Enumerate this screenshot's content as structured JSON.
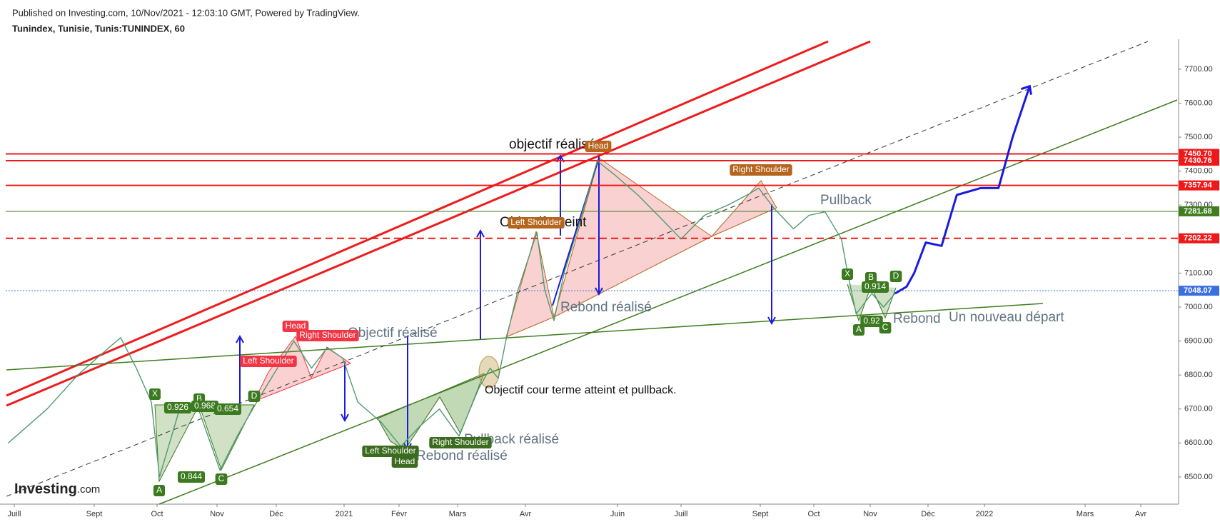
{
  "header": {
    "published": "Published on Investing.com, 10/Nov/2021 - 12:03:10 GMT, Powered by TradingView.",
    "symbol": "Tunindex, Tunisie, Tunis:TUNINDEX, 60"
  },
  "logo": {
    "brand": "Investing",
    "suffix": ".com"
  },
  "chart_data": {
    "type": "line",
    "xlim": [
      -0.15,
      21.5
    ],
    "xticks": [
      {
        "value": 0,
        "label": "Juill"
      },
      {
        "value": 2,
        "label": "Sept"
      },
      {
        "value": 3,
        "label": "Oct"
      },
      {
        "value": 4,
        "label": "Nov"
      },
      {
        "value": 5,
        "label": "Déc"
      },
      {
        "value": 6,
        "label": "2021"
      },
      {
        "value": 7,
        "label": "Févr"
      },
      {
        "value": 8,
        "label": "Mars"
      },
      {
        "value": 9,
        "label": "Avr"
      },
      {
        "value": 11,
        "label": "Juin"
      },
      {
        "value": 12,
        "label": "Juill"
      },
      {
        "value": 14,
        "label": "Sept"
      },
      {
        "value": 15,
        "label": "Oct"
      },
      {
        "value": 16,
        "label": "Nov"
      },
      {
        "value": 17,
        "label": "Déc"
      },
      {
        "value": 18,
        "label": "2022"
      },
      {
        "value": 20,
        "label": "Mars"
      },
      {
        "value": 21,
        "label": "Avr"
      }
    ],
    "ylim": [
      6420,
      7788
    ],
    "yticks": [
      {
        "value": 6500,
        "label": "6500.00"
      },
      {
        "value": 6600,
        "label": "6600.00"
      },
      {
        "value": 6700,
        "label": "6700.00"
      },
      {
        "value": 6800,
        "label": "6800.00"
      },
      {
        "value": 6900,
        "label": "6900.00"
      },
      {
        "value": 7000,
        "label": "7000.00"
      },
      {
        "value": 7100,
        "label": "7100.00"
      },
      {
        "value": 7200,
        "label": "7200.00"
      },
      {
        "value": 7300,
        "label": "7300.00"
      },
      {
        "value": 7400,
        "label": "7400.00"
      },
      {
        "value": 7500,
        "label": "7500.00"
      },
      {
        "value": 7600,
        "label": "7600.00"
      },
      {
        "value": 7700,
        "label": "7700.00"
      }
    ],
    "series": [
      {
        "color": "#4f9a72",
        "x": [
          -0.15,
          0.82,
          1.59,
          2.23,
          2.42,
          2.67,
          2.91,
          3.04,
          3.36,
          3.69,
          4.05,
          4.34,
          4.67,
          5.26,
          5.52,
          5.75,
          5.98,
          6.25,
          6.68,
          7.03,
          7.36,
          7.69,
          8.02,
          8.31,
          8.48,
          8.6,
          8.71,
          8.89,
          9.25,
          9.42,
          9.62,
          9.84,
          10.18,
          10.56,
          10.93,
          11.32,
          11.69,
          12.0,
          12.59,
          13.18,
          13.67,
          13.96,
          14.26,
          14.62,
          14.91,
          15.2,
          15.49,
          15.6,
          15.75,
          16.03,
          16.23,
          16.43
        ],
        "values": [
          6600,
          6700,
          6800,
          6880,
          6910,
          6820,
          6720,
          6500,
          6690,
          6700,
          6520,
          6620,
          6720,
          6900,
          6820,
          6880,
          6850,
          6720,
          6660,
          6590,
          6650,
          6700,
          6620,
          6760,
          6820,
          6790,
          6900,
          7050,
          7220,
          7050,
          6960,
          7100,
          7250,
          7430,
          7390,
          7330,
          7260,
          7200,
          7270,
          7300,
          7330,
          7350,
          7290,
          7230,
          7270,
          7280,
          7200,
          7100,
          6980,
          7040,
          7000,
          7040
        ]
      },
      {
        "color": "#1a1ae0",
        "x": [
          16.43,
          16.63,
          16.76,
          16.96,
          17.24,
          17.51,
          17.93,
          18.28,
          18.56,
          18.9
        ],
        "values": [
          7040,
          7060,
          7100,
          7190,
          7180,
          7330,
          7350,
          7350,
          7500,
          7650
        ]
      }
    ],
    "levels": [
      {
        "value": 7450.7,
        "label": "7450.70",
        "color": "#f01818",
        "style": "solid"
      },
      {
        "value": 7430.76,
        "label": "7430.76",
        "color": "#f01818",
        "style": "solid"
      },
      {
        "value": 7357.94,
        "label": "7357.94",
        "color": "#f01818",
        "style": "solid"
      },
      {
        "value": 7281.68,
        "label": "7281.68",
        "color": "#3f7d20",
        "style": "solid"
      },
      {
        "value": 7202.22,
        "label": "7202.22",
        "color": "#f01818",
        "style": "dashed"
      },
      {
        "value": 7048.07,
        "label": "7048.07",
        "color": "#3b6fe0",
        "style": "dotted"
      }
    ],
    "annotations": [
      "objectif réalisé",
      "Objectif atteint",
      "Rebond réalisé",
      "Pullback",
      "Objectif réalisé",
      "Rebond réalisé",
      "Pullback réalisé",
      "Objectif cour terme atteint et pullback.",
      "Rebond",
      "Un nouveau départ"
    ],
    "pattern_labels": [
      {
        "text": "Head",
        "color": "#b5651d"
      },
      {
        "text": "Left Shoulder",
        "color": "#b5651d"
      },
      {
        "text": "Right Shoulder",
        "color": "#b5651d"
      },
      {
        "text": "Head",
        "color": "#f23645"
      },
      {
        "text": "Right Shoulder",
        "color": "#f23645"
      },
      {
        "text": "Left Shoulder",
        "color": "#f23645"
      },
      {
        "text": "Left Shoulder",
        "color": "#3b6b1e"
      },
      {
        "text": "Head",
        "color": "#3b6b1e"
      },
      {
        "text": "Right Shoulder",
        "color": "#3b6b1e"
      },
      {
        "text": "X",
        "color": "#3b7a1e"
      },
      {
        "text": "0.926",
        "color": "#3b7a1e"
      },
      {
        "text": "B",
        "color": "#3b7a1e"
      },
      {
        "text": "0.968",
        "color": "#3b7a1e"
      },
      {
        "text": "0.654",
        "color": "#3b7a1e"
      },
      {
        "text": "D",
        "color": "#3b7a1e"
      },
      {
        "text": "A",
        "color": "#3b7a1e"
      },
      {
        "text": "0.844",
        "color": "#3b7a1e"
      },
      {
        "text": "C",
        "color": "#3b7a1e"
      },
      {
        "text": "X",
        "color": "#3b7a1e"
      },
      {
        "text": "B",
        "color": "#3b7a1e"
      },
      {
        "text": "D",
        "color": "#3b7a1e"
      },
      {
        "text": "0.914",
        "color": "#3b7a1e"
      },
      {
        "text": "0.92",
        "color": "#3b7a1e"
      },
      {
        "text": "A",
        "color": "#3b7a1e"
      },
      {
        "text": "C",
        "color": "#3b7a1e"
      }
    ]
  }
}
